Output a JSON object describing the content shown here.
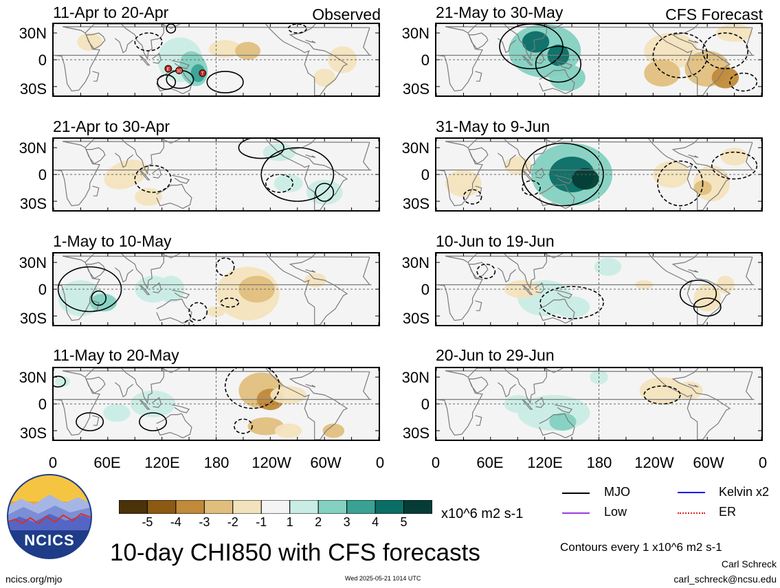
{
  "header": {
    "observed_label": "Observed",
    "forecast_label": "CFS Forecast"
  },
  "chart_data": {
    "type": "heatmap",
    "title": "10-day CHI850 with CFS forecasts",
    "units": "x10^6 m2 s-1",
    "y_ticks": [
      "30N",
      "0",
      "30S"
    ],
    "x_ticks": [
      "0",
      "60E",
      "120E",
      "180",
      "120W",
      "60W",
      "0"
    ],
    "colorbar": {
      "levels": [
        "-5",
        "-4",
        "-3",
        "-2",
        "-1",
        "1",
        "2",
        "3",
        "4",
        "5"
      ],
      "colors": [
        "#4a3209",
        "#8c5a12",
        "#c08a3a",
        "#e0bf7e",
        "#f3e3bd",
        "#f4f4f4",
        "#c9ece4",
        "#84d1c1",
        "#3aa295",
        "#0b6e66",
        "#053d36"
      ]
    },
    "panels": [
      {
        "title": "11-Apr to 20-Apr",
        "group": "Observed"
      },
      {
        "title": "21-Apr to 30-Apr",
        "group": "Observed"
      },
      {
        "title": "1-May to 10-May",
        "group": "Observed"
      },
      {
        "title": "11-May to 20-May",
        "group": "Observed"
      },
      {
        "title": "21-May to 30-May",
        "group": "CFS Forecast"
      },
      {
        "title": "31-May to 9-Jun",
        "group": "CFS Forecast"
      },
      {
        "title": "10-Jun to 19-Jun",
        "group": "CFS Forecast"
      },
      {
        "title": "20-Jun to 29-Jun",
        "group": "CFS Forecast"
      }
    ],
    "markers": [
      {
        "label": "E",
        "lon": 127,
        "lat": -10
      },
      {
        "label": "30",
        "lon": 139,
        "lat": -12
      },
      {
        "label": "T",
        "lon": 165,
        "lat": -15
      }
    ]
  },
  "legend": {
    "items": [
      {
        "label": "MJO",
        "color": "#000000"
      },
      {
        "label": "Kelvin x2",
        "color": "#1010ee"
      },
      {
        "label": "Low",
        "color": "#9a3ce0"
      },
      {
        "label": "ER",
        "color": "#e02020"
      }
    ],
    "contours_note": "Contours every 1 x10^6 m2 s-1"
  },
  "logo_text": "NCICS",
  "footer": {
    "url": "ncics.org/mjo",
    "timestamp": "Wed 2025-05-21 1014 UTC",
    "author": "Carl Schreck",
    "email": "carl_schreck@ncsu.edu"
  }
}
